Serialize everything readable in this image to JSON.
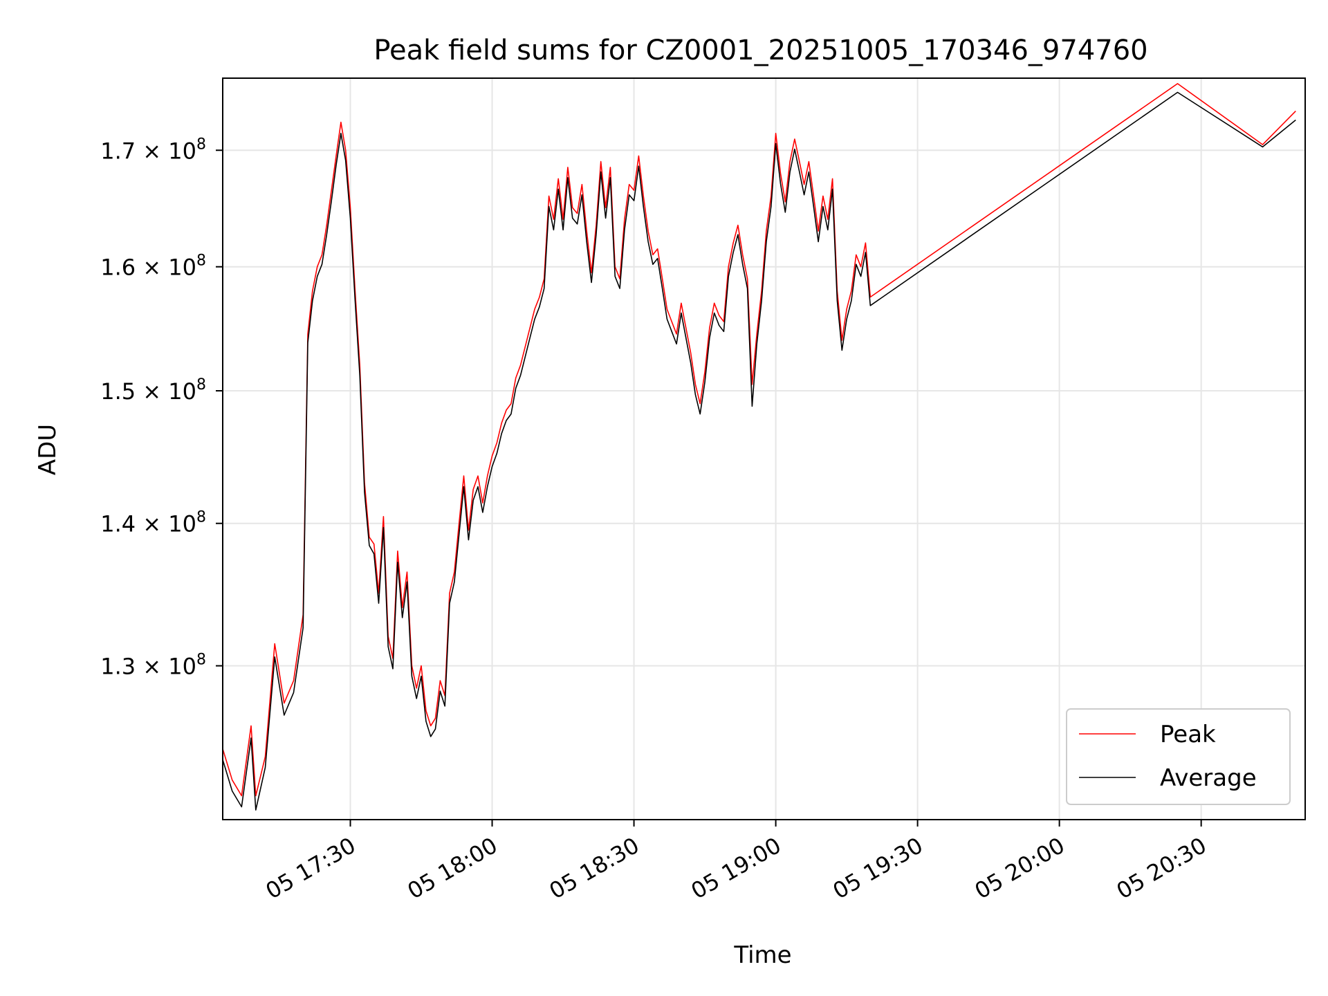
{
  "chart_data": {
    "type": "line",
    "title": "Peak field sums for CZ0001_20251005_170346_974760",
    "xlabel": "Time",
    "ylabel": "ADU",
    "yscale": "log",
    "grid": true,
    "legend_position": "lower-right",
    "xlim": [
      "05 17:03",
      "05 20:52"
    ],
    "ylim": [
      120000000,
      176500000
    ],
    "x_ticks": [
      {
        "value": "05 17:30",
        "label": "05 17:30"
      },
      {
        "value": "05 18:00",
        "label": "05 18:00"
      },
      {
        "value": "05 18:30",
        "label": "05 18:30"
      },
      {
        "value": "05 19:00",
        "label": "05 19:00"
      },
      {
        "value": "05 19:30",
        "label": "05 19:30"
      },
      {
        "value": "05 20:00",
        "label": "05 20:00"
      },
      {
        "value": "05 20:30",
        "label": "05 20:30"
      }
    ],
    "y_ticks": [
      {
        "value": 130000000,
        "mantissa": "1.3",
        "exp": "8"
      },
      {
        "value": 140000000,
        "mantissa": "1.4",
        "exp": "8"
      },
      {
        "value": 150000000,
        "mantissa": "1.5",
        "exp": "8"
      },
      {
        "value": 160000000,
        "mantissa": "1.6",
        "exp": "8"
      },
      {
        "value": 170000000,
        "mantissa": "1.7",
        "exp": "8"
      }
    ],
    "series": [
      {
        "name": "Peak",
        "color": "#ff0000",
        "points": [
          [
            "05 17:03",
            124.5
          ],
          [
            "05 17:05",
            122.5
          ],
          [
            "05 17:07",
            121.5
          ],
          [
            "05 17:09",
            126.0
          ],
          [
            "05 17:10",
            121.5
          ],
          [
            "05 17:12",
            124.0
          ],
          [
            "05 17:14",
            131.5
          ],
          [
            "05 17:16",
            127.5
          ],
          [
            "05 17:18",
            129.0
          ],
          [
            "05 17:20",
            133.5
          ],
          [
            "05 17:21",
            154.5
          ],
          [
            "05 17:22",
            158.0
          ],
          [
            "05 17:23",
            160.0
          ],
          [
            "05 17:24",
            161.0
          ],
          [
            "05 17:25",
            163.5
          ],
          [
            "05 17:26",
            166.5
          ],
          [
            "05 17:27",
            169.5
          ],
          [
            "05 17:28",
            172.5
          ],
          [
            "05 17:29",
            170.0
          ],
          [
            "05 17:30",
            165.0
          ],
          [
            "05 17:31",
            158.0
          ],
          [
            "05 17:32",
            152.0
          ],
          [
            "05 17:33",
            143.0
          ],
          [
            "05 17:34",
            139.0
          ],
          [
            "05 17:35",
            138.5
          ],
          [
            "05 17:36",
            135.0
          ],
          [
            "05 17:37",
            140.5
          ],
          [
            "05 17:38",
            132.0
          ],
          [
            "05 17:39",
            130.5
          ],
          [
            "05 17:40",
            138.0
          ],
          [
            "05 17:41",
            134.0
          ],
          [
            "05 17:42",
            136.5
          ],
          [
            "05 17:43",
            130.0
          ],
          [
            "05 17:44",
            128.5
          ],
          [
            "05 17:45",
            130.0
          ],
          [
            "05 17:46",
            127.0
          ],
          [
            "05 17:47",
            126.0
          ],
          [
            "05 17:48",
            126.5
          ],
          [
            "05 17:49",
            129.0
          ],
          [
            "05 17:50",
            128.0
          ],
          [
            "05 17:51",
            135.0
          ],
          [
            "05 17:52",
            136.5
          ],
          [
            "05 17:53",
            140.0
          ],
          [
            "05 17:54",
            143.5
          ],
          [
            "05 17:55",
            139.5
          ],
          [
            "05 17:56",
            142.5
          ],
          [
            "05 17:57",
            143.5
          ],
          [
            "05 17:58",
            141.5
          ],
          [
            "05 17:59",
            143.5
          ],
          [
            "05 18:00",
            145.0
          ],
          [
            "05 18:01",
            146.0
          ],
          [
            "05 18:02",
            147.5
          ],
          [
            "05 18:03",
            148.5
          ],
          [
            "05 18:04",
            149.0
          ],
          [
            "05 18:05",
            151.0
          ],
          [
            "05 18:06",
            152.0
          ],
          [
            "05 18:07",
            153.5
          ],
          [
            "05 18:08",
            155.0
          ],
          [
            "05 18:09",
            156.5
          ],
          [
            "05 18:10",
            157.5
          ],
          [
            "05 18:11",
            159.0
          ],
          [
            "05 18:12",
            166.0
          ],
          [
            "05 18:13",
            164.0
          ],
          [
            "05 18:14",
            167.5
          ],
          [
            "05 18:15",
            164.0
          ],
          [
            "05 18:16",
            168.5
          ],
          [
            "05 18:17",
            165.0
          ],
          [
            "05 18:18",
            164.5
          ],
          [
            "05 18:19",
            167.0
          ],
          [
            "05 18:20",
            163.0
          ],
          [
            "05 18:21",
            159.5
          ],
          [
            "05 18:22",
            163.5
          ],
          [
            "05 18:23",
            169.0
          ],
          [
            "05 18:24",
            165.0
          ],
          [
            "05 18:25",
            168.5
          ],
          [
            "05 18:26",
            160.0
          ],
          [
            "05 18:27",
            159.0
          ],
          [
            "05 18:28",
            164.0
          ],
          [
            "05 18:29",
            167.0
          ],
          [
            "05 18:30",
            166.5
          ],
          [
            "05 18:31",
            169.5
          ],
          [
            "05 18:32",
            166.0
          ],
          [
            "05 18:33",
            163.0
          ],
          [
            "05 18:34",
            161.0
          ],
          [
            "05 18:35",
            161.5
          ],
          [
            "05 18:36",
            159.0
          ],
          [
            "05 18:37",
            156.5
          ],
          [
            "05 18:38",
            155.5
          ],
          [
            "05 18:39",
            154.5
          ],
          [
            "05 18:40",
            157.0
          ],
          [
            "05 18:41",
            155.0
          ],
          [
            "05 18:42",
            153.0
          ],
          [
            "05 18:43",
            150.5
          ],
          [
            "05 18:44",
            149.0
          ],
          [
            "05 18:45",
            151.5
          ],
          [
            "05 18:46",
            155.0
          ],
          [
            "05 18:47",
            157.0
          ],
          [
            "05 18:48",
            156.0
          ],
          [
            "05 18:49",
            155.5
          ],
          [
            "05 18:50",
            160.0
          ],
          [
            "05 18:51",
            162.0
          ],
          [
            "05 18:52",
            163.5
          ],
          [
            "05 18:53",
            161.0
          ],
          [
            "05 18:54",
            159.0
          ],
          [
            "05 18:55",
            150.5
          ],
          [
            "05 18:56",
            154.5
          ],
          [
            "05 18:57",
            158.0
          ],
          [
            "05 18:58",
            163.0
          ],
          [
            "05 18:59",
            166.0
          ],
          [
            "05 19:00",
            171.5
          ],
          [
            "05 19:01",
            168.0
          ],
          [
            "05 19:02",
            165.5
          ],
          [
            "05 19:03",
            169.0
          ],
          [
            "05 19:04",
            171.0
          ],
          [
            "05 19:05",
            169.0
          ],
          [
            "05 19:06",
            167.0
          ],
          [
            "05 19:07",
            169.0
          ],
          [
            "05 19:08",
            166.0
          ],
          [
            "05 19:09",
            163.0
          ],
          [
            "05 19:10",
            166.0
          ],
          [
            "05 19:11",
            164.0
          ],
          [
            "05 19:12",
            167.5
          ],
          [
            "05 19:13",
            158.0
          ],
          [
            "05 19:14",
            154.0
          ],
          [
            "05 19:15",
            156.5
          ],
          [
            "05 19:16",
            158.0
          ],
          [
            "05 19:17",
            161.0
          ],
          [
            "05 19:18",
            160.0
          ],
          [
            "05 19:19",
            162.0
          ],
          [
            "05 19:20",
            157.5
          ],
          [
            "05 20:25",
            176.0
          ],
          [
            "05 20:43",
            170.5
          ],
          [
            "05 20:50",
            173.5
          ]
        ]
      },
      {
        "name": "Average",
        "color": "#000000",
        "points": [
          [
            "05 17:03",
            123.8
          ],
          [
            "05 17:05",
            121.8
          ],
          [
            "05 17:07",
            120.8
          ],
          [
            "05 17:09",
            125.2
          ],
          [
            "05 17:10",
            120.6
          ],
          [
            "05 17:12",
            123.3
          ],
          [
            "05 17:14",
            130.6
          ],
          [
            "05 17:16",
            126.7
          ],
          [
            "05 17:18",
            128.2
          ],
          [
            "05 17:20",
            132.6
          ],
          [
            "05 17:21",
            153.8
          ],
          [
            "05 17:22",
            157.2
          ],
          [
            "05 17:23",
            159.2
          ],
          [
            "05 17:24",
            160.2
          ],
          [
            "05 17:25",
            162.7
          ],
          [
            "05 17:26",
            165.6
          ],
          [
            "05 17:27",
            168.7
          ],
          [
            "05 17:28",
            171.5
          ],
          [
            "05 17:29",
            169.1
          ],
          [
            "05 17:30",
            164.1
          ],
          [
            "05 17:31",
            157.2
          ],
          [
            "05 17:32",
            151.2
          ],
          [
            "05 17:33",
            142.3
          ],
          [
            "05 17:34",
            138.4
          ],
          [
            "05 17:35",
            137.8
          ],
          [
            "05 17:36",
            134.3
          ],
          [
            "05 17:37",
            139.7
          ],
          [
            "05 17:38",
            131.3
          ],
          [
            "05 17:39",
            129.8
          ],
          [
            "05 17:40",
            137.2
          ],
          [
            "05 17:41",
            133.3
          ],
          [
            "05 17:42",
            135.8
          ],
          [
            "05 17:43",
            129.3
          ],
          [
            "05 17:44",
            127.8
          ],
          [
            "05 17:45",
            129.3
          ],
          [
            "05 17:46",
            126.3
          ],
          [
            "05 17:47",
            125.3
          ],
          [
            "05 17:48",
            125.8
          ],
          [
            "05 17:49",
            128.3
          ],
          [
            "05 17:50",
            127.3
          ],
          [
            "05 17:51",
            134.3
          ],
          [
            "05 17:52",
            135.8
          ],
          [
            "05 17:53",
            139.2
          ],
          [
            "05 17:54",
            142.7
          ],
          [
            "05 17:55",
            138.8
          ],
          [
            "05 17:56",
            141.7
          ],
          [
            "05 17:57",
            142.7
          ],
          [
            "05 17:58",
            140.8
          ],
          [
            "05 17:59",
            142.7
          ],
          [
            "05 18:00",
            144.2
          ],
          [
            "05 18:01",
            145.2
          ],
          [
            "05 18:02",
            146.7
          ],
          [
            "05 18:03",
            147.7
          ],
          [
            "05 18:04",
            148.2
          ],
          [
            "05 18:05",
            150.2
          ],
          [
            "05 18:06",
            151.2
          ],
          [
            "05 18:07",
            152.7
          ],
          [
            "05 18:08",
            154.2
          ],
          [
            "05 18:09",
            155.7
          ],
          [
            "05 18:10",
            156.7
          ],
          [
            "05 18:11",
            158.2
          ],
          [
            "05 18:12",
            165.1
          ],
          [
            "05 18:13",
            163.1
          ],
          [
            "05 18:14",
            166.6
          ],
          [
            "05 18:15",
            163.1
          ],
          [
            "05 18:16",
            167.6
          ],
          [
            "05 18:17",
            164.1
          ],
          [
            "05 18:18",
            163.6
          ],
          [
            "05 18:19",
            166.1
          ],
          [
            "05 18:20",
            162.1
          ],
          [
            "05 18:21",
            158.7
          ],
          [
            "05 18:22",
            162.7
          ],
          [
            "05 18:23",
            168.1
          ],
          [
            "05 18:24",
            164.1
          ],
          [
            "05 18:25",
            167.6
          ],
          [
            "05 18:26",
            159.2
          ],
          [
            "05 18:27",
            158.2
          ],
          [
            "05 18:28",
            163.1
          ],
          [
            "05 18:29",
            166.1
          ],
          [
            "05 18:30",
            165.6
          ],
          [
            "05 18:31",
            168.6
          ],
          [
            "05 18:32",
            165.1
          ],
          [
            "05 18:33",
            162.1
          ],
          [
            "05 18:34",
            160.2
          ],
          [
            "05 18:35",
            160.7
          ],
          [
            "05 18:36",
            158.2
          ],
          [
            "05 18:37",
            155.7
          ],
          [
            "05 18:38",
            154.7
          ],
          [
            "05 18:39",
            153.7
          ],
          [
            "05 18:40",
            156.2
          ],
          [
            "05 18:41",
            154.2
          ],
          [
            "05 18:42",
            152.2
          ],
          [
            "05 18:43",
            149.7
          ],
          [
            "05 18:44",
            148.2
          ],
          [
            "05 18:45",
            150.7
          ],
          [
            "05 18:46",
            154.2
          ],
          [
            "05 18:47",
            156.2
          ],
          [
            "05 18:48",
            155.2
          ],
          [
            "05 18:49",
            154.7
          ],
          [
            "05 18:50",
            159.2
          ],
          [
            "05 18:51",
            161.2
          ],
          [
            "05 18:52",
            162.7
          ],
          [
            "05 18:53",
            160.2
          ],
          [
            "05 18:54",
            158.2
          ],
          [
            "05 18:55",
            148.8
          ],
          [
            "05 18:56",
            153.7
          ],
          [
            "05 18:57",
            157.2
          ],
          [
            "05 18:58",
            162.1
          ],
          [
            "05 18:59",
            165.1
          ],
          [
            "05 19:00",
            170.6
          ],
          [
            "05 19:01",
            167.1
          ],
          [
            "05 19:02",
            164.6
          ],
          [
            "05 19:03",
            168.1
          ],
          [
            "05 19:04",
            170.1
          ],
          [
            "05 19:05",
            168.1
          ],
          [
            "05 19:06",
            166.1
          ],
          [
            "05 19:07",
            168.1
          ],
          [
            "05 19:08",
            165.1
          ],
          [
            "05 19:09",
            162.1
          ],
          [
            "05 19:10",
            165.1
          ],
          [
            "05 19:11",
            163.1
          ],
          [
            "05 19:12",
            166.6
          ],
          [
            "05 19:13",
            157.2
          ],
          [
            "05 19:14",
            153.2
          ],
          [
            "05 19:15",
            155.7
          ],
          [
            "05 19:16",
            157.2
          ],
          [
            "05 19:17",
            160.2
          ],
          [
            "05 19:18",
            159.2
          ],
          [
            "05 19:19",
            161.2
          ],
          [
            "05 19:20",
            156.8
          ],
          [
            "05 20:25",
            175.2
          ],
          [
            "05 20:43",
            170.3
          ],
          [
            "05 20:50",
            172.7
          ]
        ]
      }
    ]
  }
}
